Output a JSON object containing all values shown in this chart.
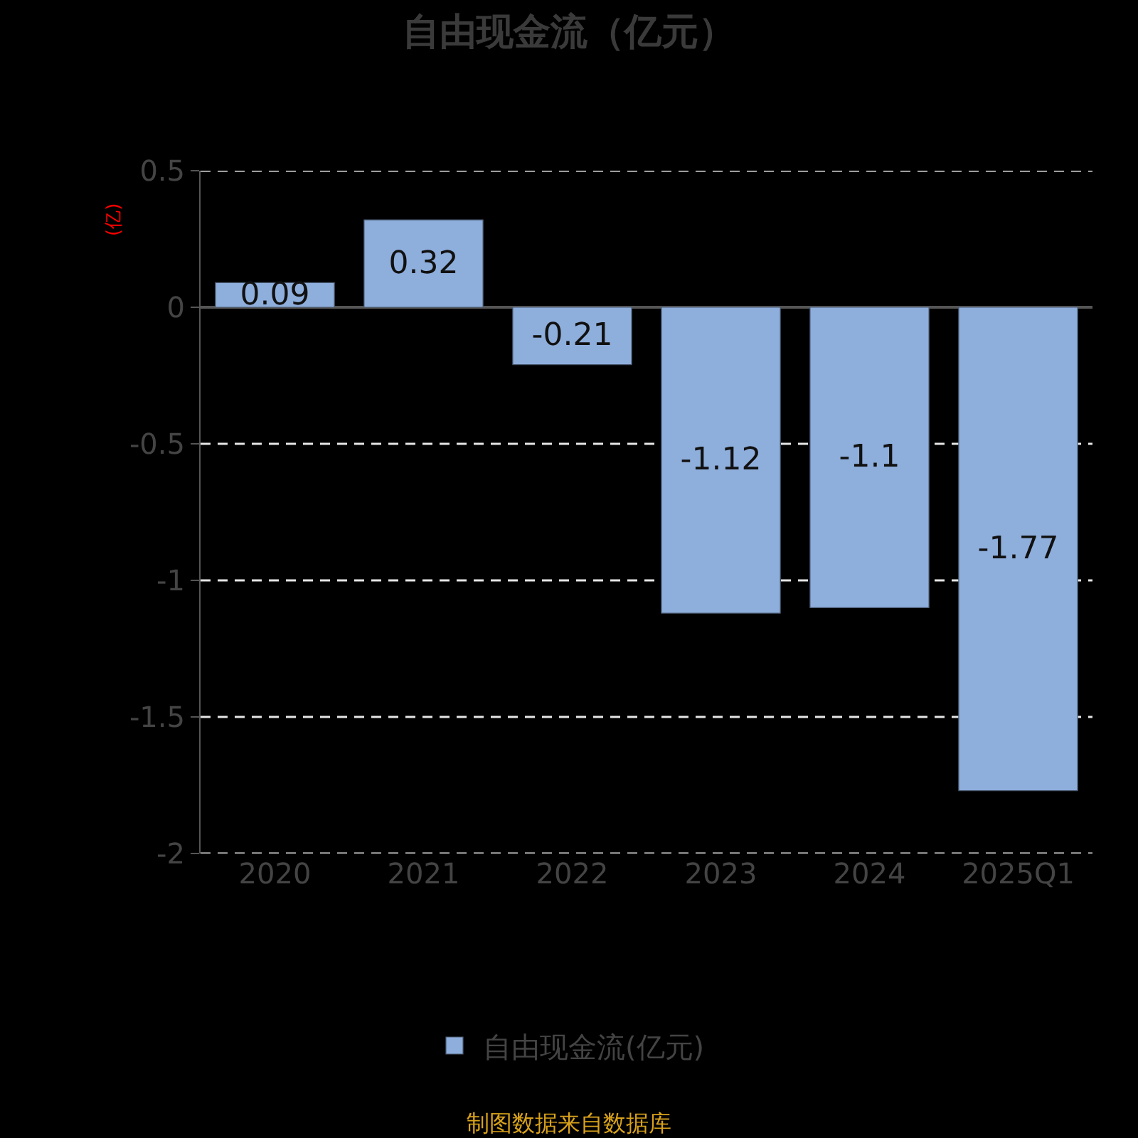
{
  "chart_data": {
    "type": "bar",
    "title": "自由现金流（亿元）",
    "ylabel": "(亿)",
    "categories": [
      "2020",
      "2021",
      "2022",
      "2023",
      "2024",
      "2025Q1"
    ],
    "series": [
      {
        "name": "自由现金流(亿元)",
        "color": "#8eaedc",
        "values": [
          0.09,
          0.32,
          -0.21,
          -1.12,
          -1.1,
          -1.77
        ]
      }
    ],
    "ylim": [
      -2,
      0.5
    ],
    "yticks": [
      -2,
      -1.5,
      -1,
      -0.5,
      0,
      0.5
    ],
    "data_labels": true,
    "grid": "y",
    "legend": "bottom",
    "annotations": [
      "制图数据来自数据库"
    ]
  }
}
